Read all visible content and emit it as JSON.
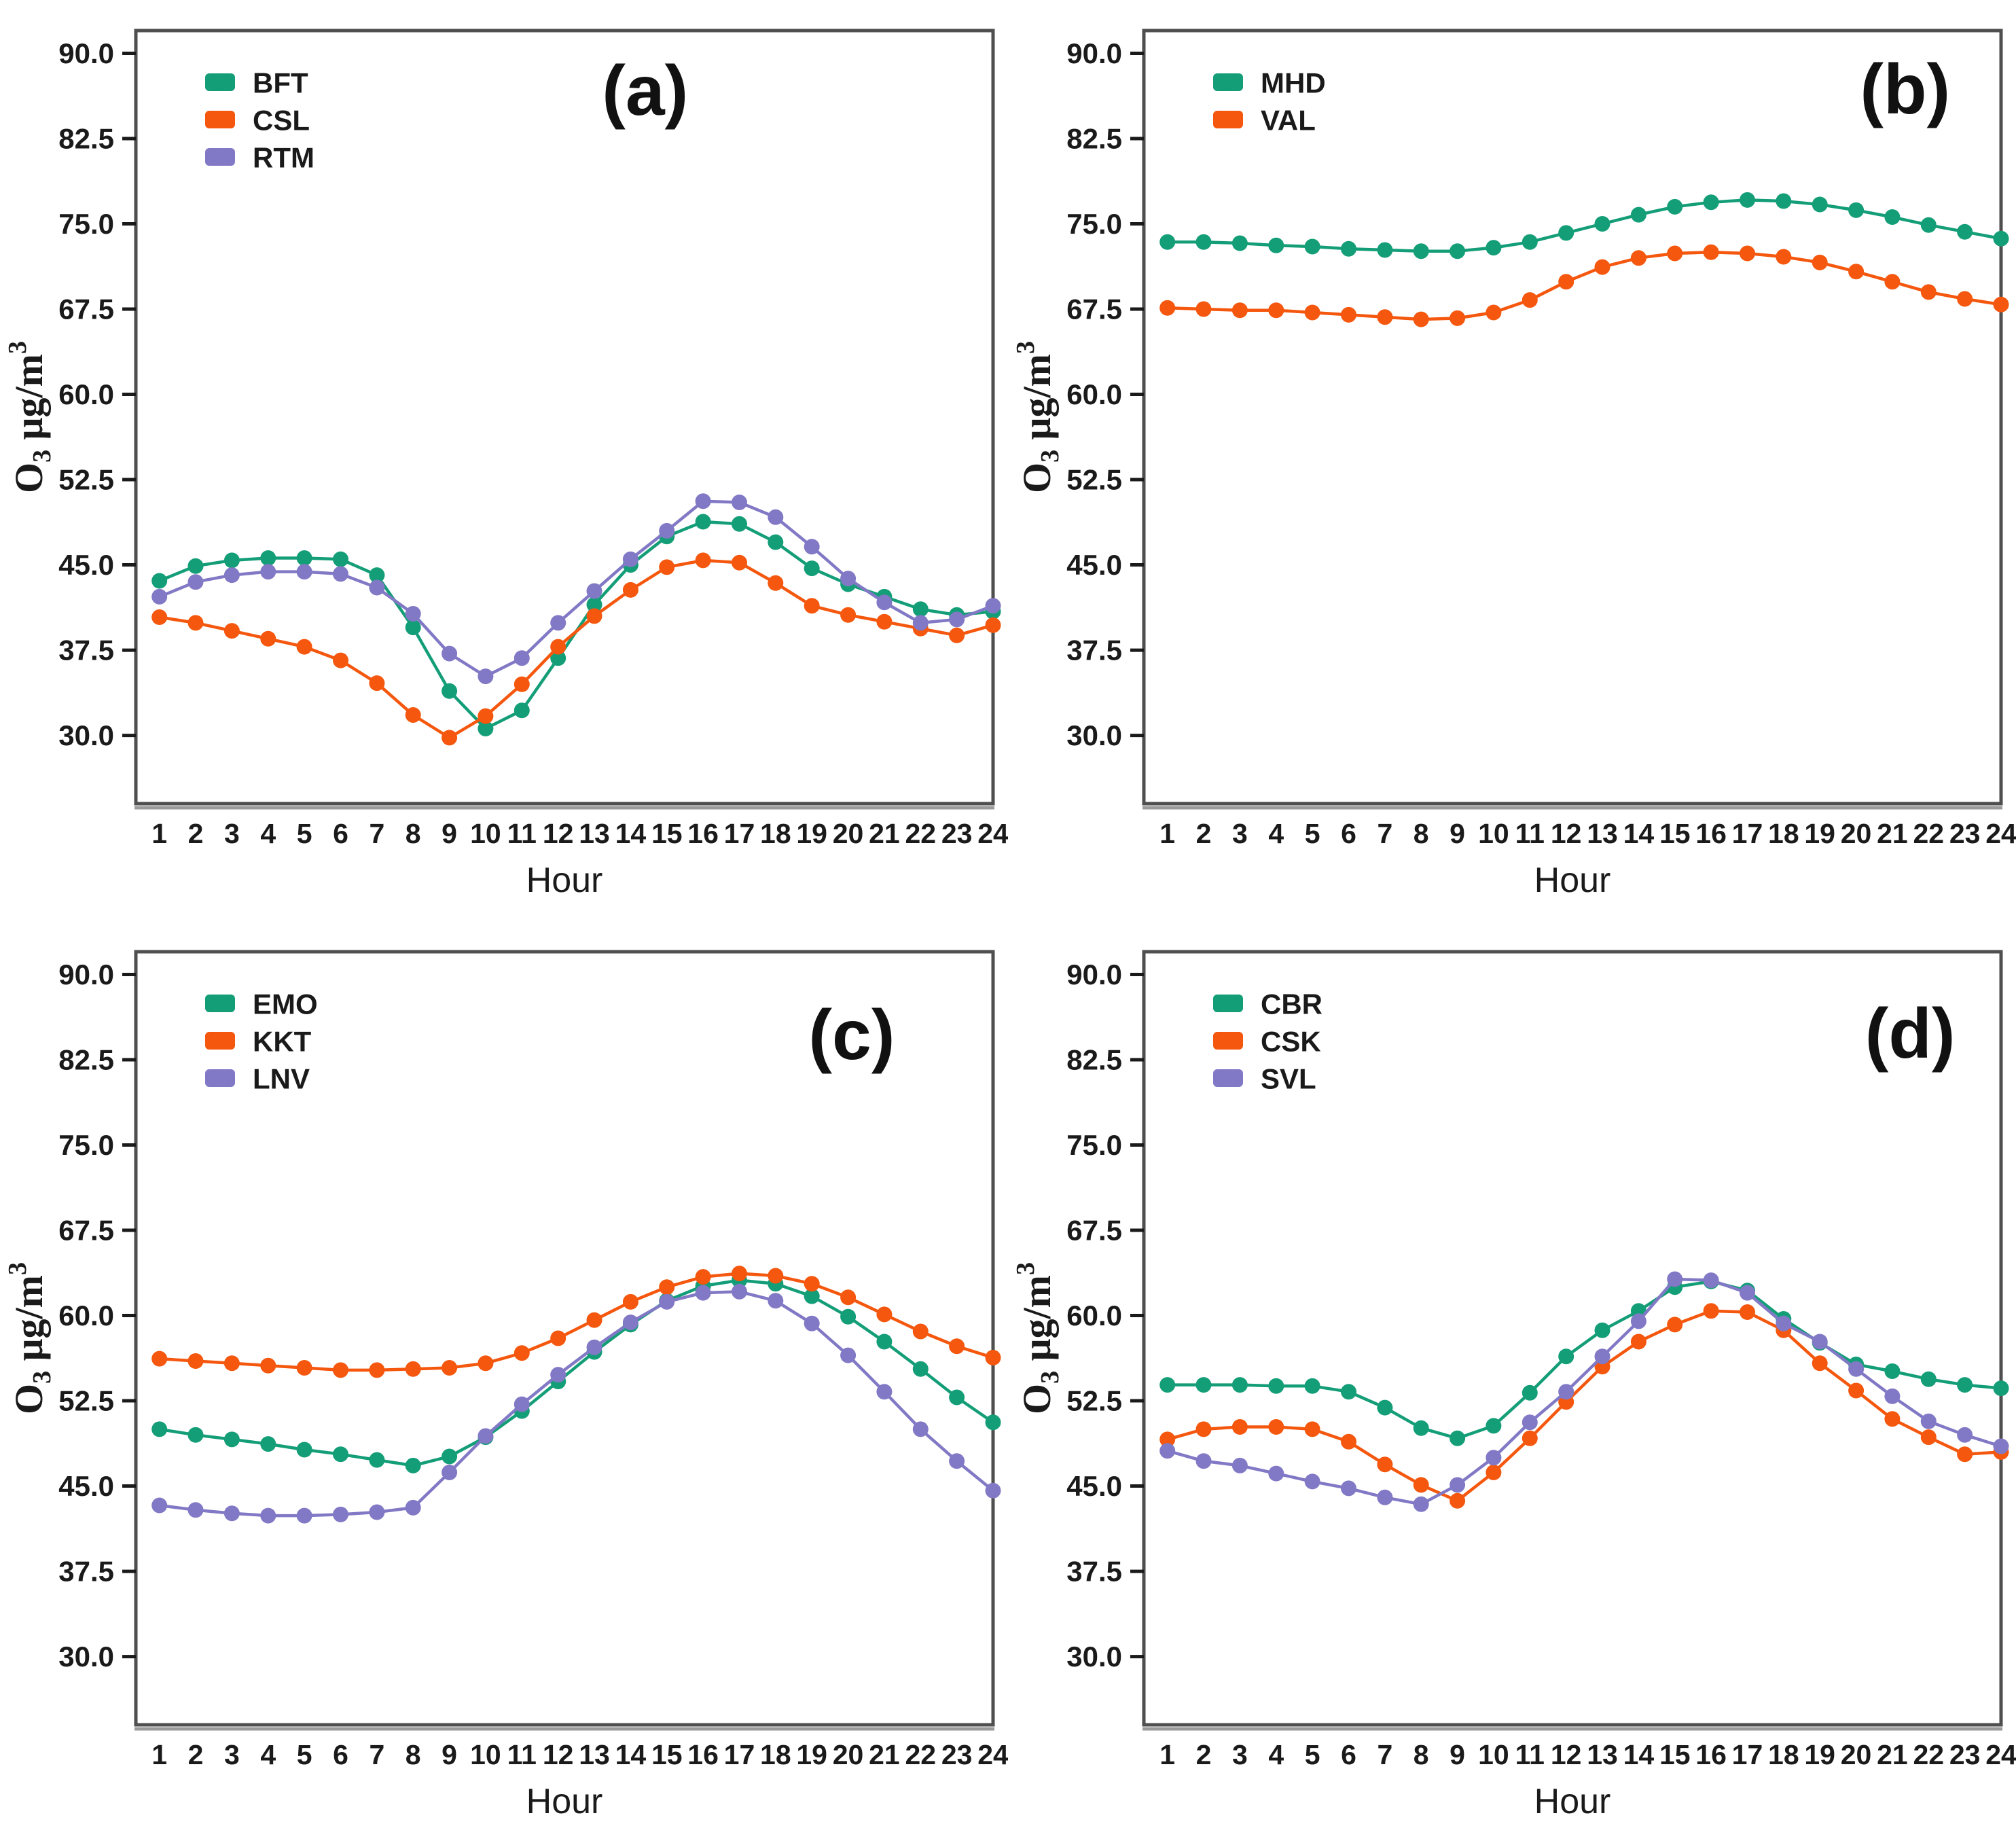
{
  "figure": {
    "background": "#ffffff",
    "axis_color": "#4f4f4f",
    "text_color": "#1a1a1a"
  },
  "axes_shared": {
    "xlabel": "Hour",
    "ylabel": {
      "base": "O",
      "sub": "3",
      "units": " μg/m",
      "sup": "3"
    },
    "x": [
      1,
      2,
      3,
      4,
      5,
      6,
      7,
      8,
      9,
      10,
      11,
      12,
      13,
      14,
      15,
      16,
      17,
      18,
      19,
      20,
      21,
      22,
      23,
      24
    ],
    "x_tick_labels": [
      "1",
      "2",
      "3",
      "4",
      "5",
      "6",
      "7",
      "8",
      "9",
      "10",
      "11",
      "12",
      "13",
      "14",
      "15",
      "16",
      "17",
      "18",
      "19",
      "20",
      "21",
      "22",
      "23",
      "24"
    ],
    "y_tick_labels": [
      "90.0",
      "82.5",
      "75.0",
      "67.5",
      "60.0",
      "52.5",
      "45.0",
      "37.5",
      "30.0"
    ],
    "y_tick_values": [
      90,
      82.5,
      75,
      67.5,
      60,
      52.5,
      45,
      37.5,
      30
    ],
    "ylim": [
      24,
      92
    ],
    "xlim": [
      0.35,
      24
    ],
    "grid": "off",
    "legend_position": "top-left-inside"
  },
  "chart_data": [
    {
      "type": "line",
      "panel_label": "(a)",
      "series": [
        {
          "name": "BFT",
          "color": "#149E78",
          "values": [
            43.6,
            44.9,
            45.4,
            45.6,
            45.6,
            45.5,
            44.1,
            39.5,
            33.9,
            30.6,
            32.2,
            36.8,
            41.5,
            45.0,
            47.5,
            48.8,
            48.6,
            47.0,
            44.7,
            43.3,
            42.2,
            41.1,
            40.6,
            40.9
          ]
        },
        {
          "name": "CSL",
          "color": "#F4570D",
          "values": [
            40.4,
            39.9,
            39.2,
            38.5,
            37.8,
            36.6,
            34.6,
            31.8,
            29.8,
            31.7,
            34.5,
            37.8,
            40.5,
            42.8,
            44.8,
            45.4,
            45.2,
            43.4,
            41.4,
            40.6,
            40.0,
            39.4,
            38.8,
            39.7
          ]
        },
        {
          "name": "RTM",
          "color": "#8179C5",
          "values": [
            42.2,
            43.5,
            44.1,
            44.4,
            44.4,
            44.2,
            43.0,
            40.7,
            37.2,
            35.2,
            36.8,
            39.9,
            42.7,
            45.5,
            48.0,
            50.6,
            50.5,
            49.2,
            46.6,
            43.8,
            41.7,
            39.9,
            40.2,
            41.4
          ]
        }
      ]
    },
    {
      "type": "line",
      "panel_label": "(b)",
      "series": [
        {
          "name": "MHD",
          "color": "#149E78",
          "values": [
            73.4,
            73.4,
            73.3,
            73.1,
            73.0,
            72.8,
            72.7,
            72.6,
            72.6,
            72.9,
            73.4,
            74.2,
            75.0,
            75.8,
            76.5,
            76.9,
            77.1,
            77.0,
            76.7,
            76.2,
            75.6,
            74.9,
            74.3,
            73.7
          ]
        },
        {
          "name": "VAL",
          "color": "#F4570D",
          "values": [
            67.6,
            67.5,
            67.4,
            67.4,
            67.2,
            67.0,
            66.8,
            66.6,
            66.7,
            67.2,
            68.3,
            69.9,
            71.2,
            72.0,
            72.4,
            72.5,
            72.4,
            72.1,
            71.6,
            70.8,
            69.9,
            69.0,
            68.4,
            67.9
          ]
        }
      ]
    },
    {
      "type": "line",
      "panel_label": "(c)",
      "series": [
        {
          "name": "EMO",
          "color": "#149E78",
          "values": [
            50.0,
            49.5,
            49.1,
            48.7,
            48.2,
            47.8,
            47.3,
            46.8,
            47.6,
            49.3,
            51.6,
            54.2,
            56.8,
            59.2,
            61.3,
            62.6,
            63.1,
            62.8,
            61.7,
            59.9,
            57.7,
            55.3,
            52.8,
            50.6
          ]
        },
        {
          "name": "KKT",
          "color": "#F4570D",
          "values": [
            56.2,
            56.0,
            55.8,
            55.6,
            55.4,
            55.2,
            55.2,
            55.3,
            55.4,
            55.8,
            56.7,
            58.0,
            59.6,
            61.2,
            62.5,
            63.4,
            63.7,
            63.5,
            62.8,
            61.6,
            60.1,
            58.6,
            57.3,
            56.3
          ]
        },
        {
          "name": "LNV",
          "color": "#8179C5",
          "values": [
            43.3,
            42.9,
            42.6,
            42.4,
            42.4,
            42.5,
            42.7,
            43.1,
            46.2,
            49.4,
            52.2,
            54.8,
            57.2,
            59.4,
            61.2,
            62.0,
            62.1,
            61.3,
            59.3,
            56.5,
            53.3,
            50.0,
            47.2,
            44.6
          ]
        }
      ]
    },
    {
      "type": "line",
      "panel_label": "(d)",
      "series": [
        {
          "name": "CBR",
          "color": "#149E78",
          "values": [
            53.9,
            53.9,
            53.9,
            53.8,
            53.8,
            53.3,
            51.9,
            50.1,
            49.2,
            50.3,
            53.2,
            56.4,
            58.7,
            60.4,
            62.5,
            63.0,
            62.2,
            59.7,
            57.6,
            55.7,
            55.1,
            54.4,
            53.9,
            53.6
          ]
        },
        {
          "name": "CSK",
          "color": "#F4570D",
          "values": [
            49.1,
            50.0,
            50.2,
            50.2,
            50.0,
            48.9,
            46.9,
            45.1,
            43.7,
            46.2,
            49.2,
            52.4,
            55.5,
            57.7,
            59.2,
            60.4,
            60.3,
            58.7,
            55.8,
            53.4,
            50.9,
            49.3,
            47.8,
            48.0
          ]
        },
        {
          "name": "SVL",
          "color": "#8179C5",
          "values": [
            48.1,
            47.2,
            46.8,
            46.1,
            45.4,
            44.8,
            44.0,
            43.4,
            45.1,
            47.5,
            50.6,
            53.3,
            56.4,
            59.5,
            63.2,
            63.1,
            62.0,
            59.3,
            57.7,
            55.3,
            52.9,
            50.7,
            49.5,
            48.5
          ]
        }
      ]
    }
  ]
}
